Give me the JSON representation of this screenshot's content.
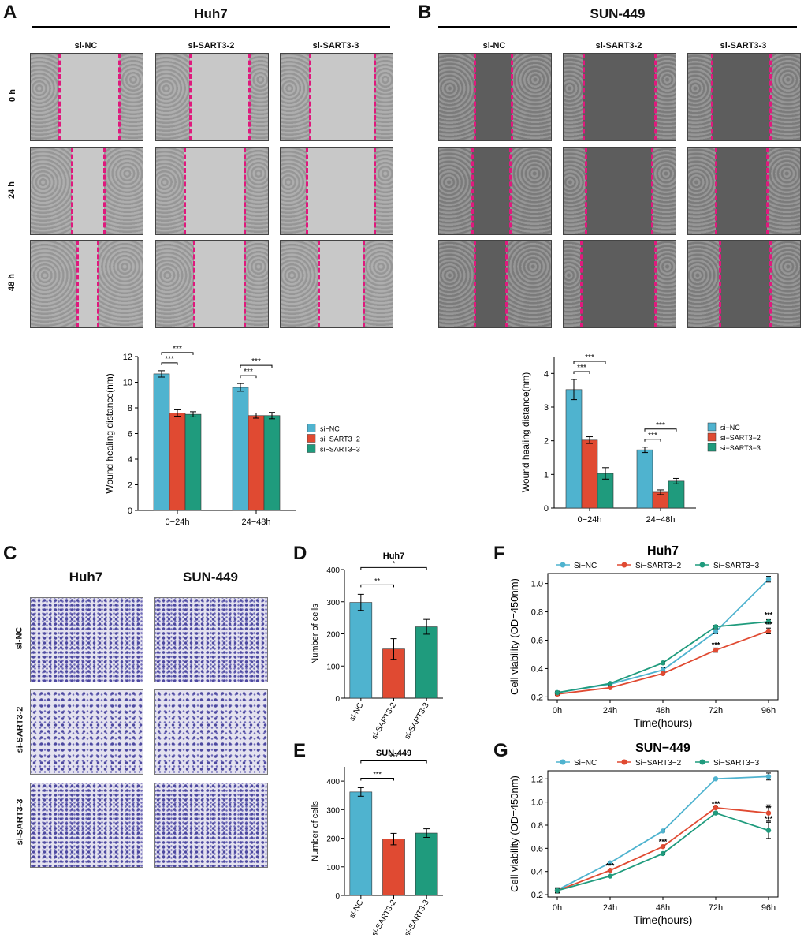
{
  "colors": {
    "si_nc": "#4fb3cf",
    "sart3_2": "#e04a32",
    "sart3_3": "#1f9b7d",
    "dash": "#e0197d"
  },
  "panels": {
    "A": "A",
    "B": "B",
    "C": "C",
    "D": "D",
    "E": "E",
    "F": "F",
    "G": "G"
  },
  "panelA": {
    "title": "Huh7",
    "cols": [
      "si-NC",
      "si-SART3-2",
      "si-SART3-3"
    ],
    "rows": [
      "0 h",
      "24 h",
      "48 h"
    ]
  },
  "panelB": {
    "title": "SUN-449",
    "cols": [
      "si-NC",
      "si-SART3-2",
      "si-SART3-3"
    ]
  },
  "panelC": {
    "cols": [
      "Huh7",
      "SUN-449"
    ],
    "rows": [
      "si-NC",
      "si-SART3-2",
      "si-SART3-3"
    ]
  },
  "chart_data": [
    {
      "id": "A-bar",
      "type": "bar",
      "title": "",
      "xlabel": "",
      "ylabel": "Wound healing distance(nm)",
      "categories": [
        "0−24h",
        "24−48h"
      ],
      "ylim": [
        0,
        12
      ],
      "yticks": [
        0,
        2,
        4,
        6,
        8,
        10,
        12
      ],
      "series": [
        {
          "name": "si−NC",
          "values": [
            10.65,
            9.6
          ],
          "err": [
            0.25,
            0.3
          ]
        },
        {
          "name": "si−SART3−2",
          "values": [
            7.6,
            7.4
          ],
          "err": [
            0.25,
            0.2
          ]
        },
        {
          "name": "si−SART3−3",
          "values": [
            7.5,
            7.4
          ],
          "err": [
            0.2,
            0.25
          ]
        }
      ],
      "sig": [
        {
          "cat": 0,
          "from": 0,
          "to": 1,
          "label": "***"
        },
        {
          "cat": 0,
          "from": 0,
          "to": 2,
          "label": "***"
        },
        {
          "cat": 1,
          "from": 0,
          "to": 1,
          "label": "***"
        },
        {
          "cat": 1,
          "from": 0,
          "to": 2,
          "label": "***"
        }
      ],
      "legend": "right"
    },
    {
      "id": "B-bar",
      "type": "bar",
      "title": "",
      "xlabel": "",
      "ylabel": "Wound healing distance(nm)",
      "categories": [
        "0−24h",
        "24−48h"
      ],
      "ylim": [
        0,
        4.5
      ],
      "yticks": [
        0,
        1,
        2,
        3,
        4
      ],
      "series": [
        {
          "name": "si−NC",
          "values": [
            3.52,
            1.73
          ],
          "err": [
            0.3,
            0.08
          ]
        },
        {
          "name": "si−SART3−2",
          "values": [
            2.02,
            0.47
          ],
          "err": [
            0.1,
            0.07
          ]
        },
        {
          "name": "si−SART3−3",
          "values": [
            1.03,
            0.8
          ],
          "err": [
            0.17,
            0.08
          ]
        }
      ],
      "sig": [
        {
          "cat": 0,
          "from": 0,
          "to": 1,
          "label": "***"
        },
        {
          "cat": 0,
          "from": 0,
          "to": 2,
          "label": "***"
        },
        {
          "cat": 1,
          "from": 0,
          "to": 1,
          "label": "***"
        },
        {
          "cat": 1,
          "from": 0,
          "to": 2,
          "label": "***"
        }
      ],
      "legend": "right"
    },
    {
      "id": "D-bar",
      "type": "bar",
      "title": "Huh7",
      "xlabel": "",
      "ylabel": "Number of cells",
      "categories": [
        "si-NC",
        "si-SART3-2",
        "si-SART3-3"
      ],
      "ylim": [
        0,
        400
      ],
      "yticks": [
        0,
        100,
        200,
        300,
        400
      ],
      "values": [
        298,
        153,
        222
      ],
      "err": [
        25,
        32,
        23
      ],
      "sig": [
        {
          "from": 0,
          "to": 1,
          "label": "**"
        },
        {
          "from": 0,
          "to": 2,
          "label": "*"
        }
      ]
    },
    {
      "id": "E-bar",
      "type": "bar",
      "title": "SUN-449",
      "xlabel": "",
      "ylabel": "Number of cells",
      "categories": [
        "si-NC",
        "si-SART3-2",
        "si-SART3-3"
      ],
      "ylim": [
        0,
        450
      ],
      "yticks": [
        0,
        100,
        200,
        300,
        400
      ],
      "values": [
        362,
        197,
        218
      ],
      "err": [
        15,
        20,
        15
      ],
      "sig": [
        {
          "from": 0,
          "to": 1,
          "label": "***"
        },
        {
          "from": 0,
          "to": 2,
          "label": "***"
        }
      ]
    },
    {
      "id": "F-line",
      "type": "line",
      "title": "Huh7",
      "xlabel": "Time(hours)",
      "ylabel": "Cell viability (OD=450nm)",
      "x": [
        "0h",
        "24h",
        "48h",
        "72h",
        "96h"
      ],
      "ylim": [
        0.18,
        1.07
      ],
      "yticks": [
        0.2,
        0.4,
        0.6,
        0.8,
        1.0
      ],
      "series": [
        {
          "name": "Si−NC",
          "values": [
            0.23,
            0.29,
            0.39,
            0.66,
            1.03
          ],
          "err": [
            0.01,
            0.01,
            0.015,
            0.015,
            0.02
          ]
        },
        {
          "name": "Si−SART3−2",
          "values": [
            0.22,
            0.265,
            0.365,
            0.53,
            0.665
          ],
          "err": [
            0.01,
            0.01,
            0.01,
            0.015,
            0.02
          ]
        },
        {
          "name": "Si−SART3−3",
          "values": [
            0.23,
            0.295,
            0.44,
            0.695,
            0.73
          ],
          "err": [
            0.01,
            0.01,
            0.01,
            0.01,
            0.015
          ]
        }
      ],
      "annotations": [
        {
          "x": "72h",
          "label": "***"
        },
        {
          "x": "96h",
          "label": "***"
        },
        {
          "x": "96h",
          "label": "***"
        }
      ],
      "legend": "top"
    },
    {
      "id": "G-line",
      "type": "line",
      "title": "SUN−449",
      "xlabel": "Time(hours)",
      "ylabel": "Cell viability (OD=450nm)",
      "x": [
        "0h",
        "24h",
        "48h",
        "72h",
        "96h"
      ],
      "ylim": [
        0.18,
        1.27
      ],
      "yticks": [
        0.2,
        0.4,
        0.6,
        0.8,
        1.0,
        1.2
      ],
      "series": [
        {
          "name": "Si−NC",
          "values": [
            0.24,
            0.475,
            0.75,
            1.2,
            1.22
          ],
          "err": [
            0.02,
            0.01,
            0.01,
            0.005,
            0.03
          ]
        },
        {
          "name": "Si−SART3−2",
          "values": [
            0.235,
            0.41,
            0.615,
            0.95,
            0.905
          ],
          "err": [
            0.02,
            0.01,
            0.01,
            0.01,
            0.07
          ]
        },
        {
          "name": "Si−SART3−3",
          "values": [
            0.235,
            0.36,
            0.555,
            0.905,
            0.755
          ],
          "err": [
            0.02,
            0.01,
            0.01,
            0.01,
            0.07
          ]
        }
      ],
      "annotations": [
        {
          "x": "24h",
          "label": "***"
        },
        {
          "x": "48h",
          "label": "***"
        },
        {
          "x": "72h",
          "label": "***"
        },
        {
          "x": "96h",
          "label": "**"
        },
        {
          "x": "96h",
          "label": "***"
        }
      ],
      "legend": "top"
    }
  ]
}
